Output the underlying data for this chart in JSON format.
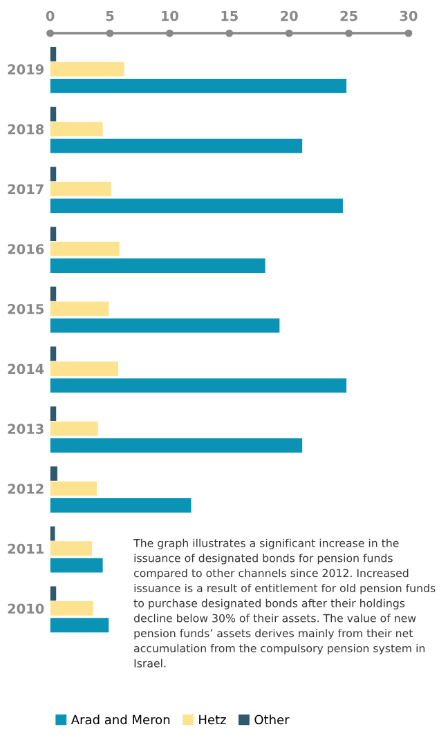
{
  "chart_data": {
    "type": "bar",
    "orientation": "horizontal",
    "categories": [
      "2019",
      "2018",
      "2017",
      "2016",
      "2015",
      "2014",
      "2013",
      "2012",
      "2011",
      "2010"
    ],
    "series": [
      {
        "name": "Arad and Meron",
        "color": "#0a93b4",
        "values": [
          24.8,
          21.1,
          24.5,
          18.0,
          19.2,
          24.8,
          21.1,
          11.8,
          4.4,
          4.9
        ]
      },
      {
        "name": "Hetz",
        "color": "#fde38f",
        "values": [
          6.2,
          4.4,
          5.1,
          5.8,
          4.9,
          5.7,
          4.0,
          3.9,
          3.5,
          3.6
        ]
      },
      {
        "name": "Other",
        "color": "#2f596d",
        "values": [
          0.5,
          0.5,
          0.5,
          0.5,
          0.5,
          0.5,
          0.5,
          0.6,
          0.4,
          0.5
        ]
      }
    ],
    "xlim": [
      0,
      30
    ],
    "xticks": [
      0,
      5,
      10,
      15,
      20,
      25,
      30
    ],
    "grid": false,
    "legend": "bottom",
    "annotations": [
      "The graph illustrates a significant increase in the issuance of designated bonds for pension funds compared to other channels since 2012. Increased issuance is a result of entitlement for old pension funds to purchase designated bonds after their holdings decline below 30% of their assets. The value of new pension funds’ assets derives mainly from their net accumulation from the compulsory pension system in Israel."
    ]
  }
}
